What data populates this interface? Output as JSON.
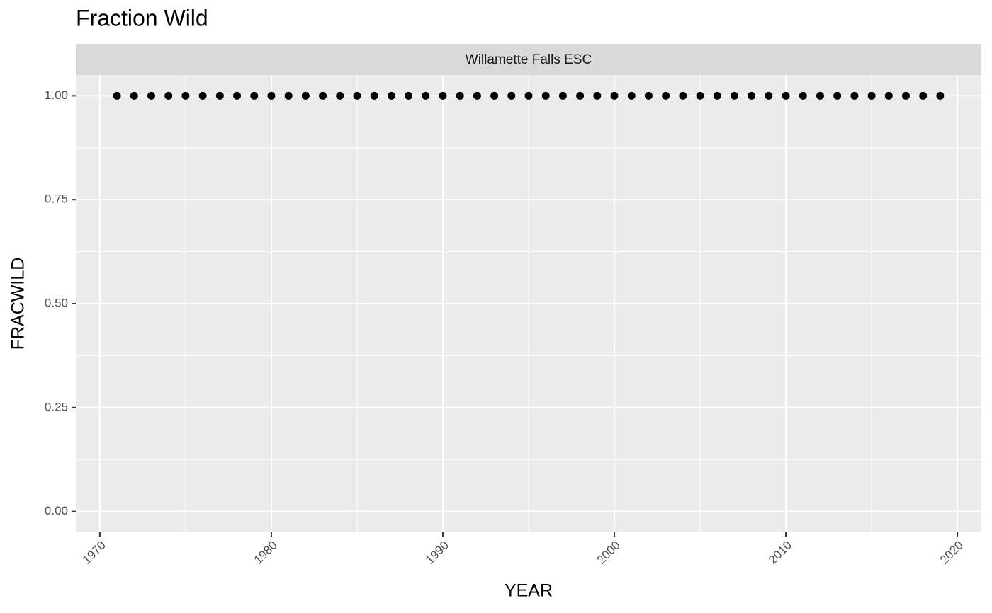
{
  "chart_data": {
    "type": "scatter",
    "title": "Fraction Wild",
    "facet_label": "Willamette Falls ESC",
    "x_label": "YEAR",
    "y_label": "FRACWILD",
    "color": "#000000",
    "grid": true,
    "x": [
      1971,
      1972,
      1973,
      1974,
      1975,
      1976,
      1977,
      1978,
      1979,
      1980,
      1981,
      1982,
      1983,
      1984,
      1985,
      1986,
      1987,
      1988,
      1989,
      1990,
      1991,
      1992,
      1993,
      1994,
      1995,
      1996,
      1997,
      1998,
      1999,
      2000,
      2001,
      2002,
      2003,
      2004,
      2005,
      2006,
      2007,
      2008,
      2009,
      2010,
      2011,
      2012,
      2013,
      2014,
      2015,
      2016,
      2017,
      2018,
      2019
    ],
    "values": [
      1,
      1,
      1,
      1,
      1,
      1,
      1,
      1,
      1,
      1,
      1,
      1,
      1,
      1,
      1,
      1,
      1,
      1,
      1,
      1,
      1,
      1,
      1,
      1,
      1,
      1,
      1,
      1,
      1,
      1,
      1,
      1,
      1,
      1,
      1,
      1,
      1,
      1,
      1,
      1,
      1,
      1,
      1,
      1,
      1,
      1,
      1,
      1,
      1
    ],
    "xlim": [
      1968.6,
      2021.4
    ],
    "xticks": [
      1970,
      1980,
      1990,
      2000,
      2010,
      2020
    ],
    "ylim": [
      -0.05,
      1.05
    ],
    "yticks": [
      {
        "value": 0,
        "label": "0.00"
      },
      {
        "value": 0.25,
        "label": "0.25"
      },
      {
        "value": 0.5,
        "label": "0.50"
      },
      {
        "value": 0.75,
        "label": "0.75"
      },
      {
        "value": 1,
        "label": "1.00"
      }
    ]
  }
}
